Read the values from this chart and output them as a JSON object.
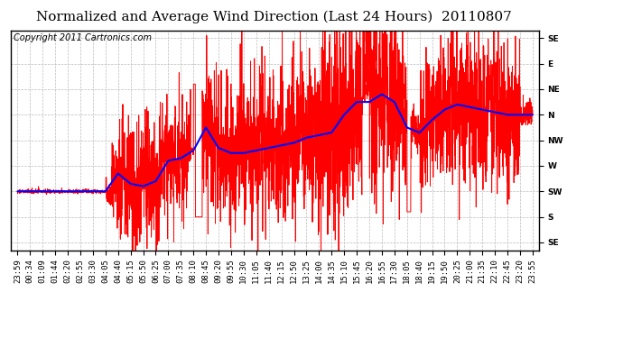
{
  "title": "Normalized and Average Wind Direction (Last 24 Hours)  20110807",
  "copyright": "Copyright 2011 Cartronics.com",
  "background_color": "#ffffff",
  "plot_bg_color": "#ffffff",
  "grid_color": "#bbbbbb",
  "ytick_labels": [
    "SE",
    "E",
    "NE",
    "N",
    "NW",
    "W",
    "SW",
    "S",
    "SE"
  ],
  "ytick_values": [
    8,
    7,
    6,
    5,
    4,
    3,
    2,
    1,
    0
  ],
  "xtick_labels": [
    "23:59",
    "00:34",
    "01:09",
    "01:44",
    "02:20",
    "02:55",
    "03:30",
    "04:05",
    "04:40",
    "05:15",
    "05:50",
    "06:25",
    "07:00",
    "07:35",
    "08:10",
    "08:45",
    "09:20",
    "09:55",
    "10:30",
    "11:05",
    "11:40",
    "12:15",
    "12:50",
    "13:25",
    "14:00",
    "14:35",
    "15:10",
    "15:45",
    "16:20",
    "16:55",
    "17:30",
    "18:05",
    "18:40",
    "19:15",
    "19:50",
    "20:25",
    "21:00",
    "21:35",
    "22:10",
    "22:45",
    "23:20",
    "23:55"
  ],
  "ylim": [
    -0.3,
    8.3
  ],
  "red_line_color": "#ff0000",
  "blue_line_color": "#0000ff",
  "title_fontsize": 11,
  "copyright_fontsize": 7,
  "tick_label_fontsize": 6.5,
  "n_points": 42,
  "blue_y": [
    2.0,
    2.0,
    2.0,
    2.0,
    2.0,
    2.0,
    2.0,
    2.0,
    2.7,
    2.3,
    2.2,
    2.4,
    3.2,
    3.3,
    3.6,
    4.5,
    3.7,
    3.5,
    3.5,
    3.6,
    3.7,
    3.8,
    3.9,
    4.1,
    4.2,
    4.3,
    5.0,
    5.5,
    5.5,
    5.8,
    5.5,
    4.5,
    4.3,
    4.8,
    5.2,
    5.4,
    5.3,
    5.2,
    5.1,
    5.0,
    5.0,
    5.0
  ]
}
